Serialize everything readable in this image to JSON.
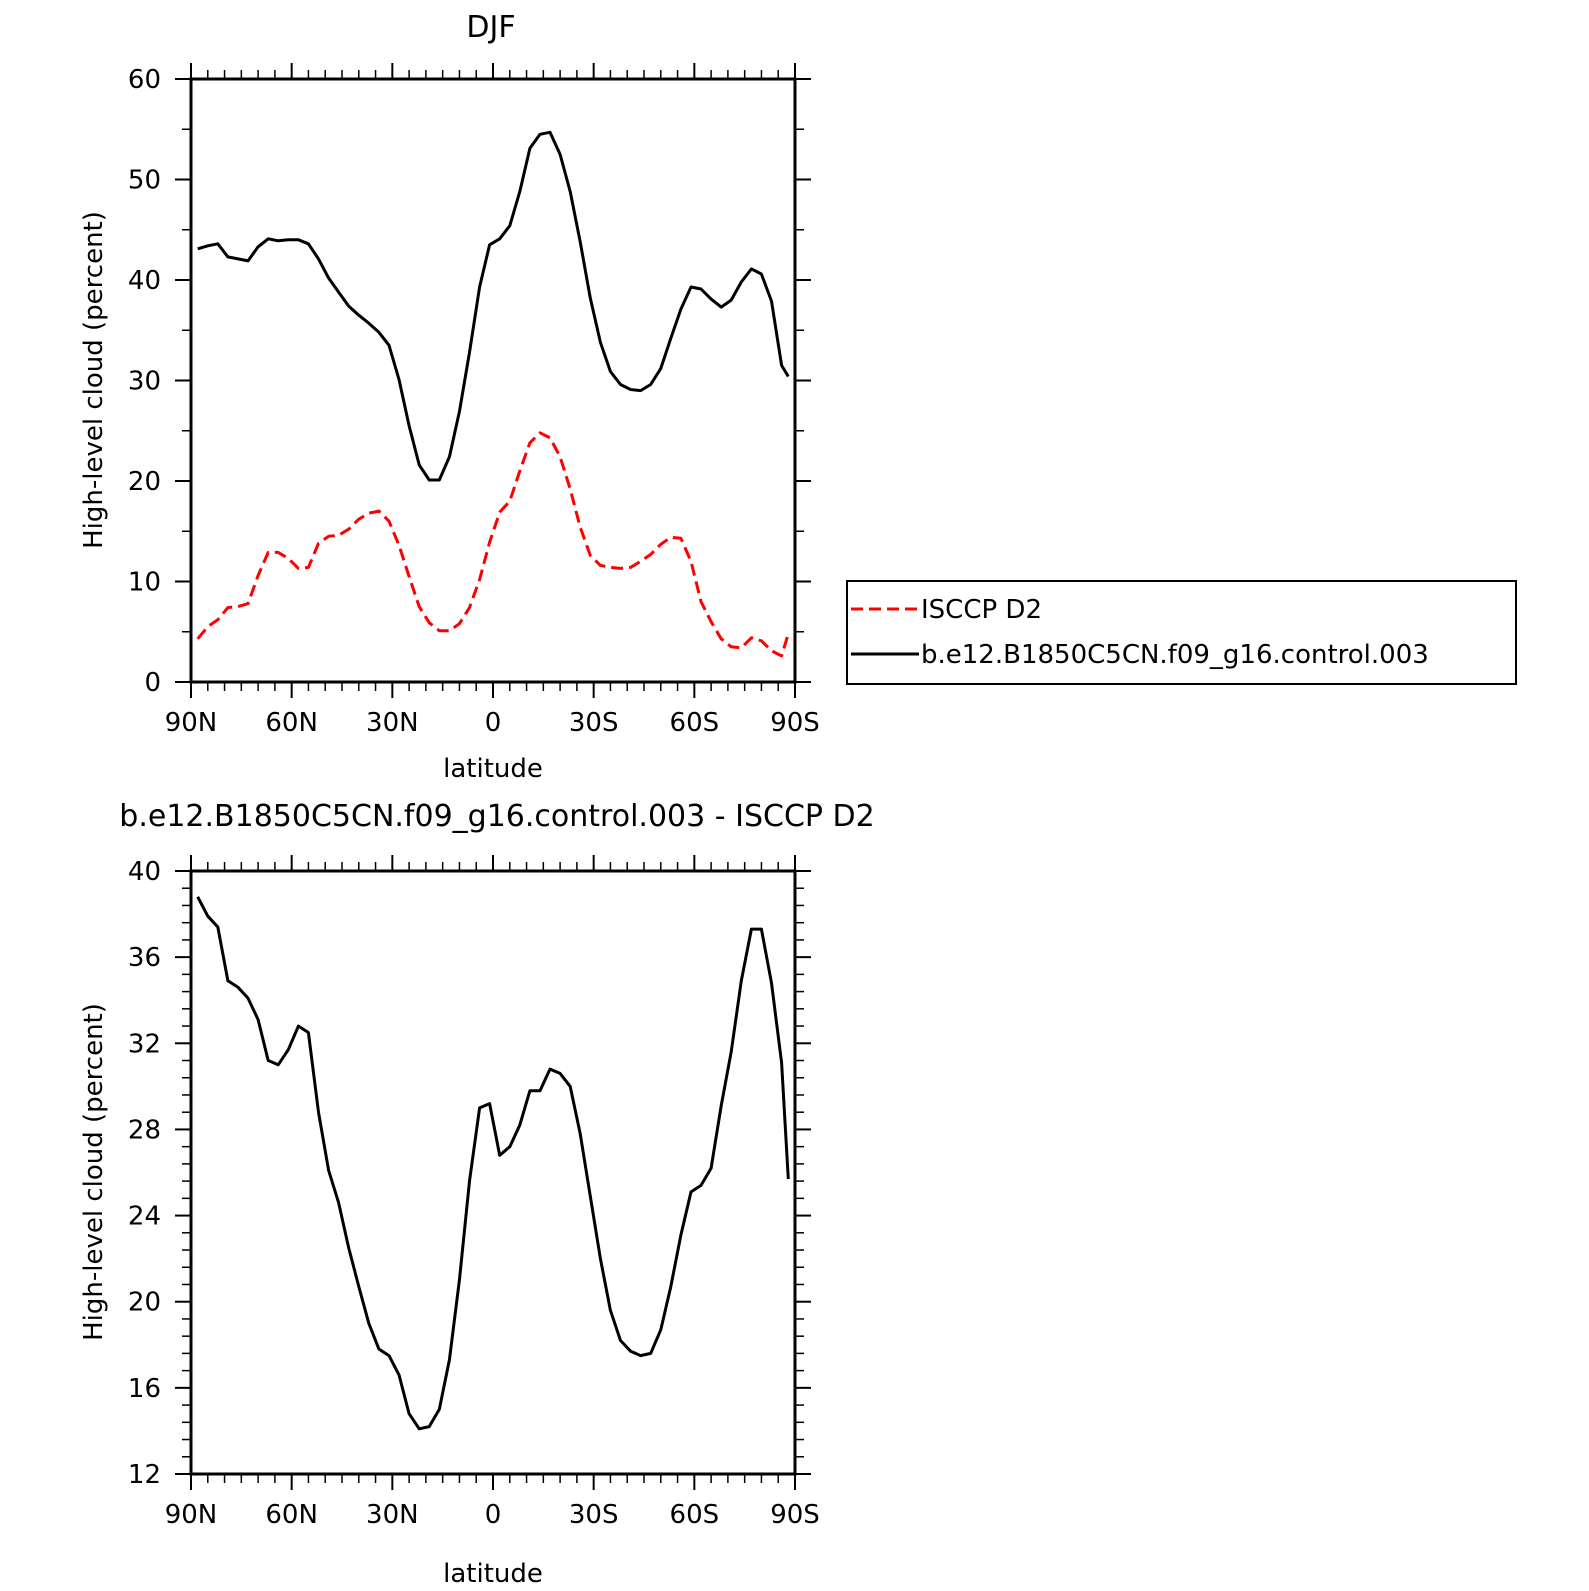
{
  "chart_data": [
    {
      "type": "line",
      "title": "DJF",
      "xlabel": "latitude",
      "ylabel": "High-level cloud (percent)",
      "xlim": [
        90,
        -90
      ],
      "ylim": [
        0,
        60
      ],
      "x_ticks": [
        {
          "value": 90,
          "label": "90N"
        },
        {
          "value": 60,
          "label": "60N"
        },
        {
          "value": 30,
          "label": "30N"
        },
        {
          "value": 0,
          "label": "0"
        },
        {
          "value": -30,
          "label": "30S"
        },
        {
          "value": -60,
          "label": "60S"
        },
        {
          "value": -90,
          "label": "90S"
        }
      ],
      "y_ticks": [
        0,
        10,
        20,
        30,
        40,
        50,
        60
      ],
      "legend": {
        "position": "right",
        "entries": [
          "ISCCP D2",
          "b.e12.B1850C5CN.f09_g16.control.003"
        ]
      },
      "series": [
        {
          "name": "ISCCP D2",
          "color": "#ff0000",
          "dash": "dashed",
          "x": [
            88,
            85,
            82,
            79,
            76,
            73,
            70,
            67,
            64,
            61,
            58,
            55,
            52,
            49,
            46,
            43,
            40,
            37,
            34,
            31,
            28,
            25,
            22,
            19,
            16,
            13,
            10,
            7,
            4,
            1,
            -2,
            -5,
            -8,
            -11,
            -14,
            -17,
            -20,
            -23,
            -26,
            -29,
            -32,
            -35,
            -38,
            -41,
            -44,
            -47,
            -50,
            -53,
            -56,
            -59,
            -62,
            -65,
            -68,
            -71,
            -74,
            -77,
            -80,
            -83,
            -86,
            -88
          ],
          "values": [
            4.3,
            5.5,
            6.2,
            7.4,
            7.5,
            7.8,
            10.6,
            12.9,
            12.9,
            12.3,
            11.3,
            11.4,
            13.8,
            14.5,
            14.6,
            15.2,
            16.2,
            16.8,
            17.0,
            16.0,
            13.6,
            10.5,
            7.5,
            5.9,
            5.1,
            5.1,
            5.8,
            7.4,
            10.2,
            13.9,
            16.9,
            18.0,
            21.0,
            23.8,
            24.8,
            24.3,
            22.4,
            19.2,
            15.4,
            12.6,
            11.6,
            11.4,
            11.3,
            11.4,
            12.0,
            12.7,
            13.7,
            14.4,
            14.3,
            12.0,
            8.0,
            6.0,
            4.3,
            3.5,
            3.4,
            4.4,
            4.1,
            3.1,
            2.6,
            4.8
          ]
        },
        {
          "name": "b.e12.B1850C5CN.f09_g16.control.003",
          "color": "#000000",
          "dash": "solid",
          "x": [
            88,
            85,
            82,
            79,
            76,
            73,
            70,
            67,
            64,
            61,
            58,
            55,
            52,
            49,
            46,
            43,
            40,
            37,
            34,
            31,
            28,
            25,
            22,
            19,
            16,
            13,
            10,
            7,
            4,
            1,
            -2,
            -5,
            -8,
            -11,
            -14,
            -17,
            -20,
            -23,
            -26,
            -29,
            -32,
            -35,
            -38,
            -41,
            -44,
            -47,
            -50,
            -53,
            -56,
            -59,
            -62,
            -65,
            -68,
            -71,
            -74,
            -77,
            -80,
            -83,
            -86,
            -88
          ],
          "values": [
            43.1,
            43.4,
            43.6,
            42.3,
            42.1,
            41.9,
            43.3,
            44.1,
            43.9,
            44.0,
            44.0,
            43.6,
            42.1,
            40.2,
            38.8,
            37.4,
            36.5,
            35.7,
            34.8,
            33.5,
            30.1,
            25.5,
            21.6,
            20.1,
            20.1,
            22.4,
            26.9,
            32.8,
            39.3,
            43.5,
            44.1,
            45.4,
            48.8,
            53.1,
            54.5,
            54.7,
            52.5,
            48.8,
            43.8,
            38.2,
            33.8,
            30.9,
            29.6,
            29.1,
            29.0,
            29.6,
            31.2,
            34.2,
            37.1,
            39.3,
            39.1,
            38.1,
            37.3,
            38.0,
            39.8,
            41.1,
            40.6,
            37.9,
            31.5,
            30.4
          ]
        }
      ]
    },
    {
      "type": "line",
      "title": "b.e12.B1850C5CN.f09_g16.control.003 - ISCCP D2",
      "xlabel": "latitude",
      "ylabel": "High-level cloud (percent)",
      "xlim": [
        90,
        -90
      ],
      "ylim": [
        12,
        40
      ],
      "x_ticks": [
        {
          "value": 90,
          "label": "90N"
        },
        {
          "value": 60,
          "label": "60N"
        },
        {
          "value": 30,
          "label": "30N"
        },
        {
          "value": 0,
          "label": "0"
        },
        {
          "value": -30,
          "label": "30S"
        },
        {
          "value": -60,
          "label": "60S"
        },
        {
          "value": -90,
          "label": "90S"
        }
      ],
      "y_ticks": [
        12,
        16,
        20,
        24,
        28,
        32,
        36,
        40
      ],
      "series": [
        {
          "color": "#000000",
          "dash": "solid",
          "x": [
            88,
            85,
            82,
            79,
            76,
            73,
            70,
            67,
            64,
            61,
            58,
            55,
            52,
            49,
            46,
            43,
            40,
            37,
            34,
            31,
            28,
            25,
            22,
            19,
            16,
            13,
            10,
            7,
            4,
            1,
            -2,
            -5,
            -8,
            -11,
            -14,
            -17,
            -20,
            -23,
            -26,
            -29,
            -32,
            -35,
            -38,
            -41,
            -44,
            -47,
            -50,
            -53,
            -56,
            -59,
            -62,
            -65,
            -68,
            -71,
            -74,
            -77,
            -80,
            -83,
            -86,
            -88
          ],
          "values": [
            38.8,
            37.9,
            37.4,
            34.9,
            34.6,
            34.1,
            33.1,
            31.2,
            31.0,
            31.7,
            32.8,
            32.5,
            28.8,
            26.1,
            24.6,
            22.5,
            20.7,
            19.0,
            17.8,
            17.5,
            16.6,
            14.8,
            14.1,
            14.2,
            15.0,
            17.3,
            21.0,
            25.6,
            29.0,
            29.2,
            26.8,
            27.2,
            28.2,
            29.8,
            29.8,
            30.8,
            30.6,
            30.0,
            27.8,
            24.9,
            22.0,
            19.6,
            18.2,
            17.7,
            17.5,
            17.6,
            18.7,
            20.7,
            23.1,
            25.1,
            25.4,
            26.2,
            29.1,
            31.6,
            34.9,
            37.3,
            37.3,
            34.8,
            31.1,
            25.7
          ]
        }
      ]
    }
  ]
}
